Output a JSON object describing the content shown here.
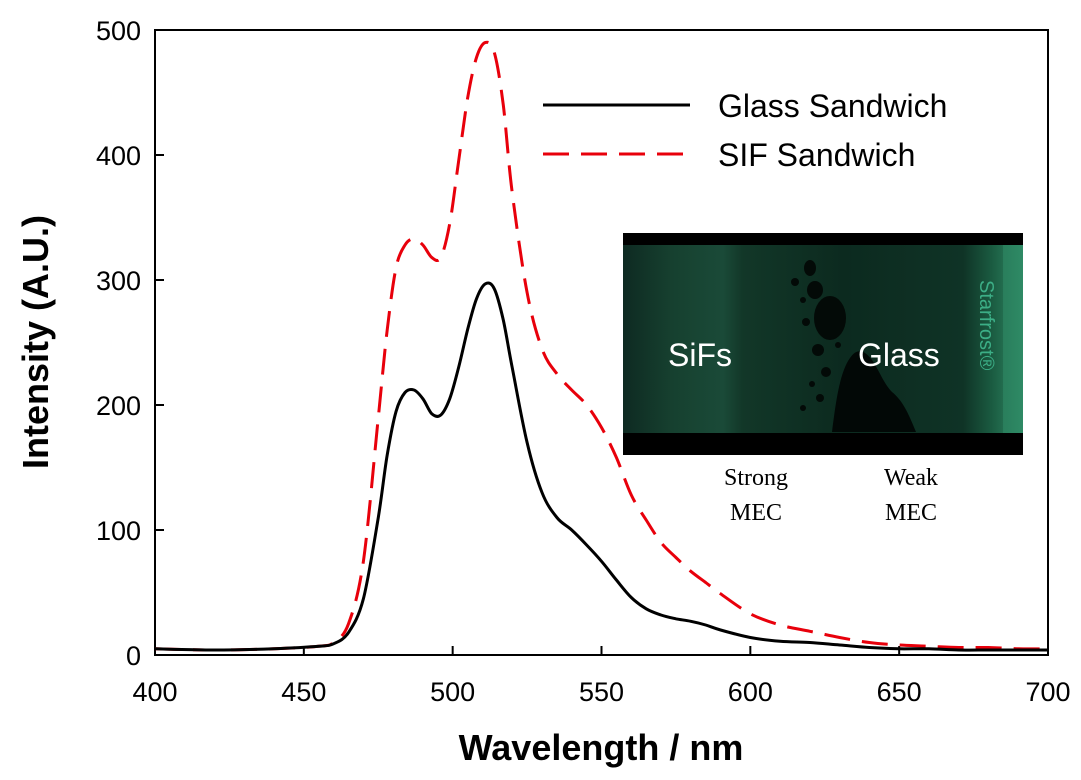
{
  "chart_data": {
    "type": "line",
    "title": "",
    "xlabel": "Wavelength / nm",
    "ylabel": "Intensity (A.U.)",
    "xlim": [
      400,
      700
    ],
    "ylim": [
      0,
      500
    ],
    "xticks": [
      400,
      450,
      500,
      550,
      600,
      650,
      700
    ],
    "yticks": [
      0,
      100,
      200,
      300,
      400,
      500
    ],
    "grid": false,
    "legend_position": "top-right",
    "series": [
      {
        "name": "Glass Sandwich",
        "color": "#000000",
        "style": "solid",
        "x": [
          400,
          420,
          440,
          455,
          460,
          465,
          470,
          475,
          478,
          481,
          484,
          487,
          490,
          493,
          496,
          499,
          502,
          505,
          508,
          511,
          514,
          517,
          520,
          525,
          530,
          535,
          540,
          545,
          550,
          555,
          560,
          565,
          570,
          575,
          580,
          585,
          590,
          600,
          610,
          620,
          630,
          640,
          650,
          660,
          670,
          680,
          690,
          700
        ],
        "y": [
          5,
          4,
          5,
          7,
          9,
          18,
          45,
          110,
          160,
          195,
          210,
          212,
          205,
          193,
          192,
          205,
          230,
          260,
          285,
          297,
          293,
          268,
          230,
          170,
          130,
          110,
          100,
          88,
          75,
          60,
          46,
          37,
          32,
          29,
          27,
          24,
          20,
          14,
          11,
          10,
          8,
          6,
          5,
          5,
          4,
          4,
          4,
          4
        ]
      },
      {
        "name": "SIF Sandwich",
        "color": "#e8000b",
        "style": "dashed",
        "x": [
          400,
          420,
          440,
          455,
          460,
          465,
          470,
          475,
          478,
          481,
          484,
          487,
          490,
          493,
          496,
          499,
          502,
          505,
          508,
          511,
          514,
          517,
          520,
          525,
          530,
          535,
          540,
          545,
          550,
          555,
          560,
          565,
          570,
          575,
          580,
          585,
          590,
          600,
          610,
          620,
          630,
          640,
          650,
          660,
          670,
          680,
          690,
          700
        ],
        "y": [
          5,
          4,
          5,
          7,
          10,
          25,
          75,
          190,
          260,
          310,
          328,
          333,
          328,
          318,
          318,
          345,
          395,
          445,
          478,
          490,
          482,
          440,
          370,
          290,
          245,
          225,
          212,
          200,
          182,
          158,
          128,
          108,
          90,
          78,
          67,
          58,
          49,
          33,
          24,
          19,
          14,
          10,
          8,
          7,
          6,
          6,
          5,
          5
        ]
      }
    ]
  },
  "inset": {
    "left_label": "SiFs",
    "right_label": "Glass",
    "brand": "Starfrost®",
    "caption_left_line1": "Strong",
    "caption_left_line2": "MEC",
    "caption_right_line1": "Weak",
    "caption_right_line2": "MEC"
  }
}
